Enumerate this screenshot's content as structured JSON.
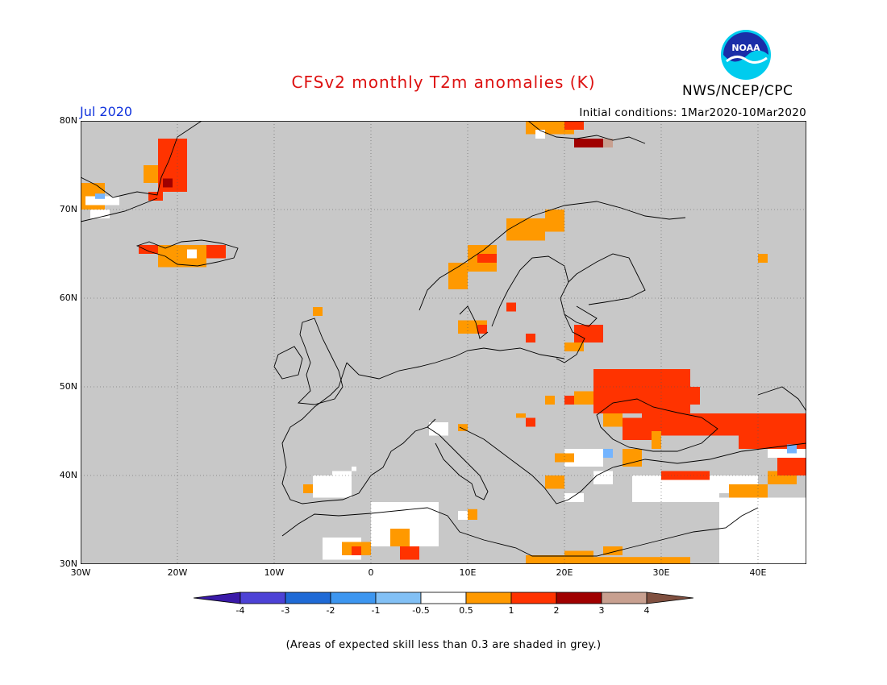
{
  "title": "CFSv2 monthly T2m anomalies (K)",
  "month": "Jul 2020",
  "initial_conditions": "Initial conditions: 1Mar2020-10Mar2020",
  "agency": "NWS/NCEP/CPC",
  "logo_text": "NOAA",
  "footnote": "(Areas of expected skill less than 0.3 are shaded in grey.)",
  "map": {
    "lon_range": [
      -30,
      45
    ],
    "lat_range": [
      30,
      80
    ],
    "lat_labels": [
      "80N",
      "70N",
      "60N",
      "50N",
      "40N",
      "30N"
    ],
    "lon_labels": [
      "30W",
      "20W",
      "10W",
      "0",
      "10E",
      "20E",
      "30E",
      "40E"
    ],
    "colors": {
      "grey": "#c8c8c8",
      "white": "#ffffff",
      "orange": "#ff9900",
      "red": "#ff3300",
      "darkred": "#a00000",
      "tan": "#c8a090",
      "lightblue": "#73b4ff"
    }
  },
  "colorbar": {
    "labels": [
      "-4",
      "-3",
      "-2",
      "-1",
      "-0.5",
      "0.5",
      "1",
      "2",
      "3",
      "4"
    ],
    "colors": [
      "#3a1aa8",
      "#4d42d6",
      "#1f6ad6",
      "#3d96f0",
      "#82c0f5",
      "#ffffff",
      "#ff9900",
      "#ff3300",
      "#a00000",
      "#c8a090",
      "#805040"
    ]
  }
}
